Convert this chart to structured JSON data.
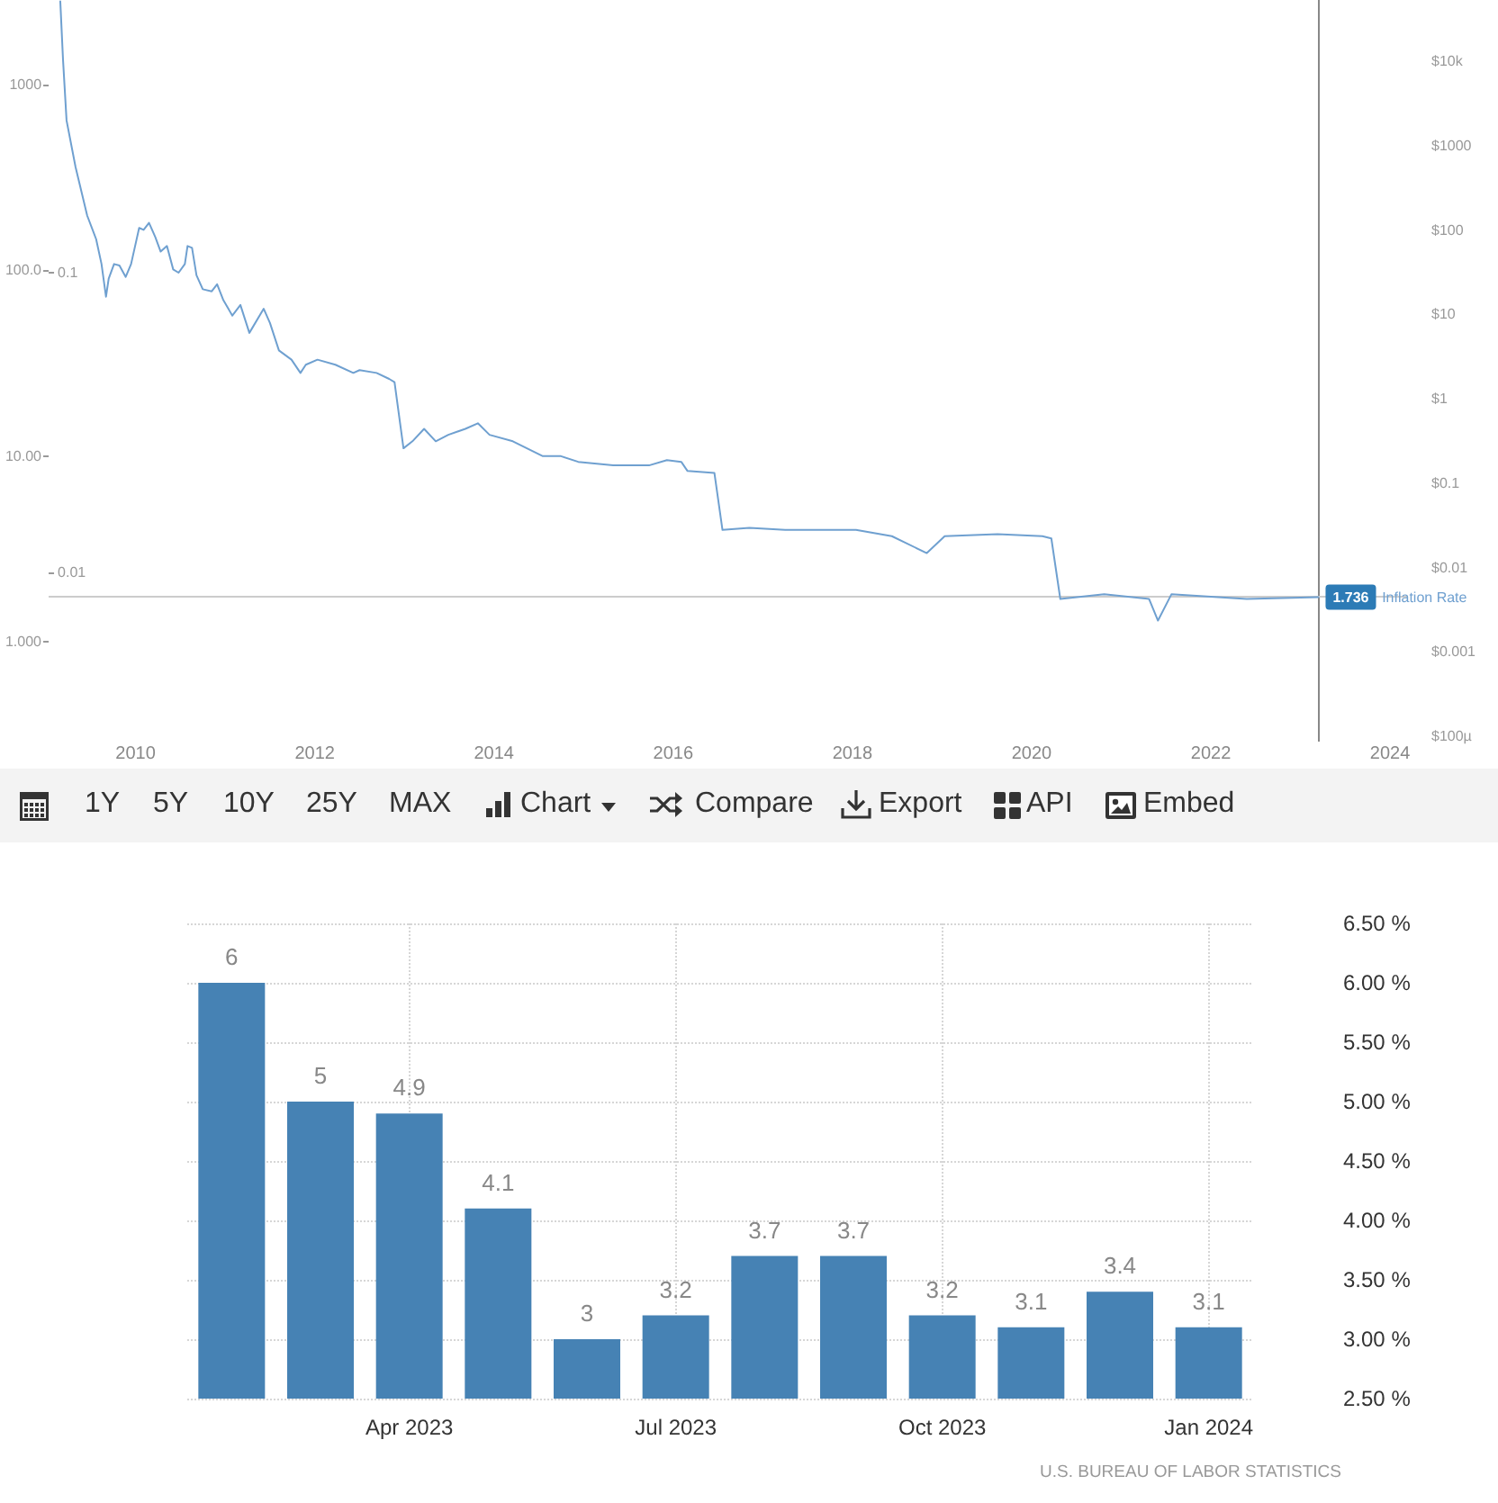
{
  "chart_data": [
    {
      "type": "line",
      "x": [
        2009.16,
        2009.19,
        2009.23,
        2009.33,
        2009.46,
        2009.56,
        2009.62,
        2009.67,
        2009.7,
        2009.76,
        2009.82,
        2009.89,
        2009.95,
        2010.04,
        2010.09,
        2010.15,
        2010.22,
        2010.28,
        2010.35,
        2010.42,
        2010.48,
        2010.55,
        2010.58,
        2010.63,
        2010.68,
        2010.75,
        2010.85,
        2010.91,
        2010.98,
        2011.08,
        2011.17,
        2011.27,
        2011.43,
        2011.5,
        2011.6,
        2011.74,
        2011.84,
        2011.9,
        2012.03,
        2012.23,
        2012.43,
        2012.5,
        2012.69,
        2012.83,
        2012.89,
        2012.99,
        2013.09,
        2013.22,
        2013.35,
        2013.49,
        2013.68,
        2013.82,
        2013.95,
        2014.21,
        2014.54,
        2014.74,
        2014.94,
        2015.33,
        2015.73,
        2015.93,
        2016.09,
        2016.16,
        2016.46,
        2016.55,
        2016.85,
        2017.25,
        2018.04,
        2018.44,
        2018.83,
        2019.03,
        2019.62,
        2020.12,
        2020.22,
        2020.32,
        2020.81,
        2021.31,
        2021.41,
        2021.56,
        2022.4,
        2023.2
      ],
      "series": [
        {
          "name": "Inflation Rate",
          "color": "#6fa0d0",
          "values": [
            2800,
            1370,
            640,
            360,
            197,
            147,
            108,
            72,
            90,
            108,
            106,
            92,
            108,
            169,
            165,
            180,
            151,
            126,
            135,
            101,
            97,
            108,
            135,
            132,
            94,
            79,
            77,
            84,
            69,
            57,
            65,
            46,
            62,
            52,
            37,
            33,
            28,
            31,
            33,
            31,
            28,
            29,
            28,
            26,
            25,
            11,
            12,
            14,
            12,
            13,
            14,
            15,
            13,
            12,
            10,
            10,
            9.3,
            8.9,
            8.9,
            9.5,
            9.3,
            8.3,
            8.1,
            4.0,
            4.1,
            4.0,
            4.0,
            3.7,
            3.0,
            3.7,
            3.8,
            3.7,
            3.6,
            1.7,
            1.8,
            1.7,
            1.3,
            1.8,
            1.7,
            1.736
          ],
          "value_labels": [
            null,
            null,
            null,
            null,
            null,
            null,
            null,
            null,
            null,
            null,
            null,
            null,
            null,
            null,
            null,
            null,
            null,
            null,
            null,
            null,
            null,
            null,
            null,
            null,
            null,
            null,
            null,
            null,
            null,
            null,
            null,
            null,
            null,
            null,
            null,
            null,
            null,
            null,
            null,
            null,
            null,
            null,
            null,
            null,
            null,
            null,
            null,
            null,
            null,
            null,
            null,
            null,
            null,
            null,
            null,
            null,
            null,
            null,
            null,
            null,
            null,
            null,
            null,
            null,
            null,
            null,
            null,
            null,
            null,
            null,
            null,
            null,
            null,
            null,
            null,
            null,
            null,
            null,
            null,
            "1.736"
          ]
        }
      ],
      "xlim": [
        2009.03,
        2024.2
      ],
      "xticks": [
        2010,
        2012,
        2014,
        2016,
        2018,
        2020,
        2022,
        2024
      ],
      "ylim": [
        0.29,
        2850
      ],
      "yticks": [
        {
          "value": 1,
          "label": "1.000"
        },
        {
          "value": 10,
          "label": "10.00"
        },
        {
          "value": 100,
          "label": "100.0"
        },
        1000
      ],
      "y3lim": [
        -0.041,
        0.182
      ],
      "y3ticks": [
        0.01,
        0.1
      ],
      "log": "y",
      "annotations": [
        "$10k",
        "$1000",
        "$100",
        "$10",
        "$1",
        "$0.1",
        "$0.01",
        "$0.001",
        "$100µ"
      ],
      "ref_lines": [
        {
          "axis": "x",
          "value": 2023.2,
          "color": "#888888"
        },
        {
          "axis": "y",
          "value": 1.736,
          "color": "#cccccc"
        }
      ]
    },
    {
      "type": "other",
      "annotations": [
        "1Y",
        "5Y",
        "10Y",
        "25Y",
        "MAX",
        "Chart",
        "Compare",
        "Export",
        "API",
        "Embed"
      ]
    },
    {
      "type": "bar",
      "categories": [
        null,
        null,
        "Apr 2023",
        null,
        null,
        "Jul 2023",
        null,
        null,
        "Oct 2023",
        null,
        null,
        "Jan 2024"
      ],
      "values": [
        6,
        5,
        4.9,
        4.1,
        3,
        3.2,
        3.7,
        3.7,
        3.2,
        3.1,
        3.4,
        3.1
      ],
      "color": "#4682b4",
      "ylim": [
        2.5,
        6.5
      ],
      "yticks": [
        {
          "value": 2.5,
          "label": "2.50 %"
        },
        {
          "value": 3,
          "label": "3.00 %"
        },
        {
          "value": 3.5,
          "label": "3.50 %"
        },
        {
          "value": 4,
          "label": "4.00 %"
        },
        {
          "value": 4.5,
          "label": "4.50 %"
        },
        {
          "value": 5,
          "label": "5.00 %"
        },
        {
          "value": 5.5,
          "label": "5.50 %"
        },
        {
          "value": 6,
          "label": "6.00 %"
        },
        {
          "value": 6.5,
          "label": "6.50 %"
        }
      ],
      "grid": true,
      "data_labels": true,
      "annotations": [
        "U.S. BUREAU OF LABOR STATISTICS"
      ]
    }
  ]
}
